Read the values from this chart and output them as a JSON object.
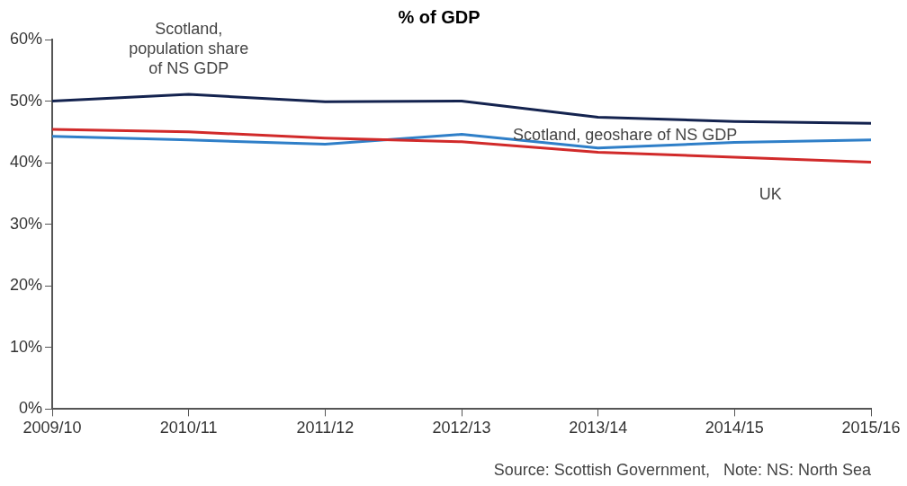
{
  "chart_data": {
    "type": "line",
    "title": "% of GDP",
    "categories": [
      "2009/10",
      "2010/11",
      "2011/12",
      "2012/13",
      "2013/14",
      "2014/15",
      "2015/16"
    ],
    "series": [
      {
        "name": "Scotland,\npopulation share\nof NS GDP",
        "color": "#14234f",
        "values": [
          50.0,
          51.1,
          49.9,
          50.0,
          47.4,
          46.7,
          46.4
        ]
      },
      {
        "name": "UK",
        "color": "#d12a2a",
        "values": [
          45.4,
          45.0,
          44.0,
          43.4,
          41.7,
          40.9,
          40.1
        ]
      },
      {
        "name": "Scotland, geoshare of NS GDP",
        "color": "#2f7fc8",
        "values": [
          44.3,
          43.7,
          43.0,
          44.6,
          42.4,
          43.3,
          43.7
        ]
      }
    ],
    "ylim": [
      0,
      60
    ],
    "yticks": [
      {
        "value": 0,
        "label": "0%"
      },
      {
        "value": 10,
        "label": "10%"
      },
      {
        "value": 20,
        "label": "20%"
      },
      {
        "value": 30,
        "label": "30%"
      },
      {
        "value": 40,
        "label": "40%"
      },
      {
        "value": 50,
        "label": "50%"
      },
      {
        "value": 60,
        "label": "60%"
      }
    ],
    "grid": false,
    "legend": false,
    "marker": "none",
    "line_style": "solid",
    "annotations": [
      "Source: Scottish Government,   Note: NS: North Sea"
    ]
  }
}
